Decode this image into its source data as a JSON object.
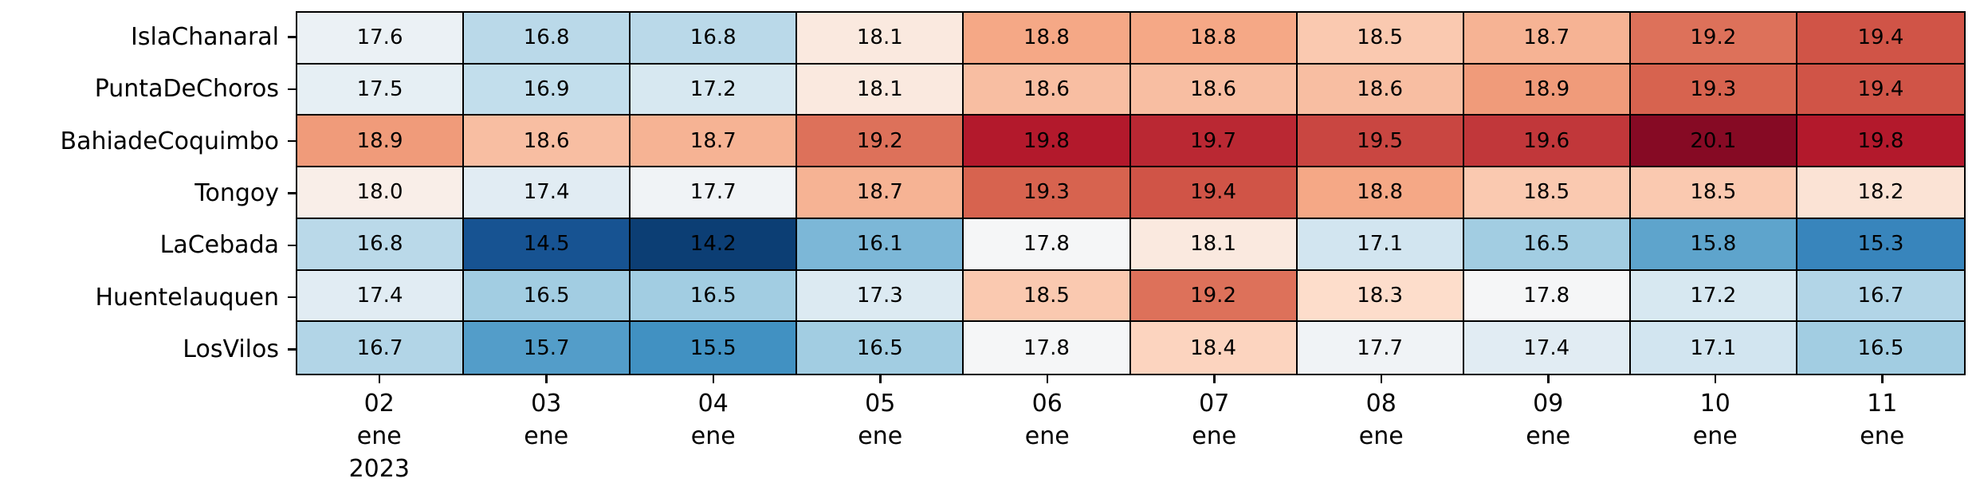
{
  "figure": {
    "background": "#ffffff",
    "grid_line_color": "#000000",
    "annotation_color": "#000000"
  },
  "chart_data": {
    "type": "heatmap",
    "title": "",
    "xlabel": "",
    "ylabel": "",
    "rows": [
      "IslaChanaral",
      "PuntaDeChoros",
      "BahiadeCoquimbo",
      "Tongoy",
      "LaCebada",
      "Huentelauquen",
      "LosVilos"
    ],
    "columns": [
      {
        "label": "02\nene\n2023"
      },
      {
        "label": "03\nene"
      },
      {
        "label": "04\nene"
      },
      {
        "label": "05\nene"
      },
      {
        "label": "06\nene"
      },
      {
        "label": "07\nene"
      },
      {
        "label": "08\nene"
      },
      {
        "label": "09\nene"
      },
      {
        "label": "10\nene"
      },
      {
        "label": "11\nene"
      }
    ],
    "values": [
      [
        17.6,
        16.8,
        16.8,
        18.1,
        18.8,
        18.8,
        18.5,
        18.7,
        19.2,
        19.4
      ],
      [
        17.5,
        16.9,
        17.2,
        18.1,
        18.6,
        18.6,
        18.6,
        18.9,
        19.3,
        19.4
      ],
      [
        18.9,
        18.6,
        18.7,
        19.2,
        19.8,
        19.7,
        19.5,
        19.6,
        20.1,
        19.8
      ],
      [
        18.0,
        17.4,
        17.7,
        18.7,
        19.3,
        19.4,
        18.8,
        18.5,
        18.5,
        18.2
      ],
      [
        16.8,
        14.5,
        14.2,
        16.1,
        17.8,
        18.1,
        17.1,
        16.5,
        15.8,
        15.3
      ],
      [
        17.4,
        16.5,
        16.5,
        17.3,
        18.5,
        19.2,
        18.3,
        17.8,
        17.2,
        16.7
      ],
      [
        16.7,
        15.7,
        15.5,
        16.5,
        17.8,
        18.4,
        17.7,
        17.4,
        17.1,
        16.5
      ]
    ],
    "value_format": ".1f",
    "value_min": 14.2,
    "value_max": 20.1,
    "colormap": {
      "name": "RdBu_r",
      "stops": [
        "#053061",
        "#2166ac",
        "#4393c3",
        "#92c5de",
        "#d1e5f0",
        "#f7f7f7",
        "#fddbc7",
        "#f4a582",
        "#d6604d",
        "#b2182b",
        "#67001f"
      ],
      "vmin": 14.0,
      "vcenter": 17.85,
      "vmax": 20.3
    },
    "legend": "none",
    "grid": "cell-borders"
  }
}
